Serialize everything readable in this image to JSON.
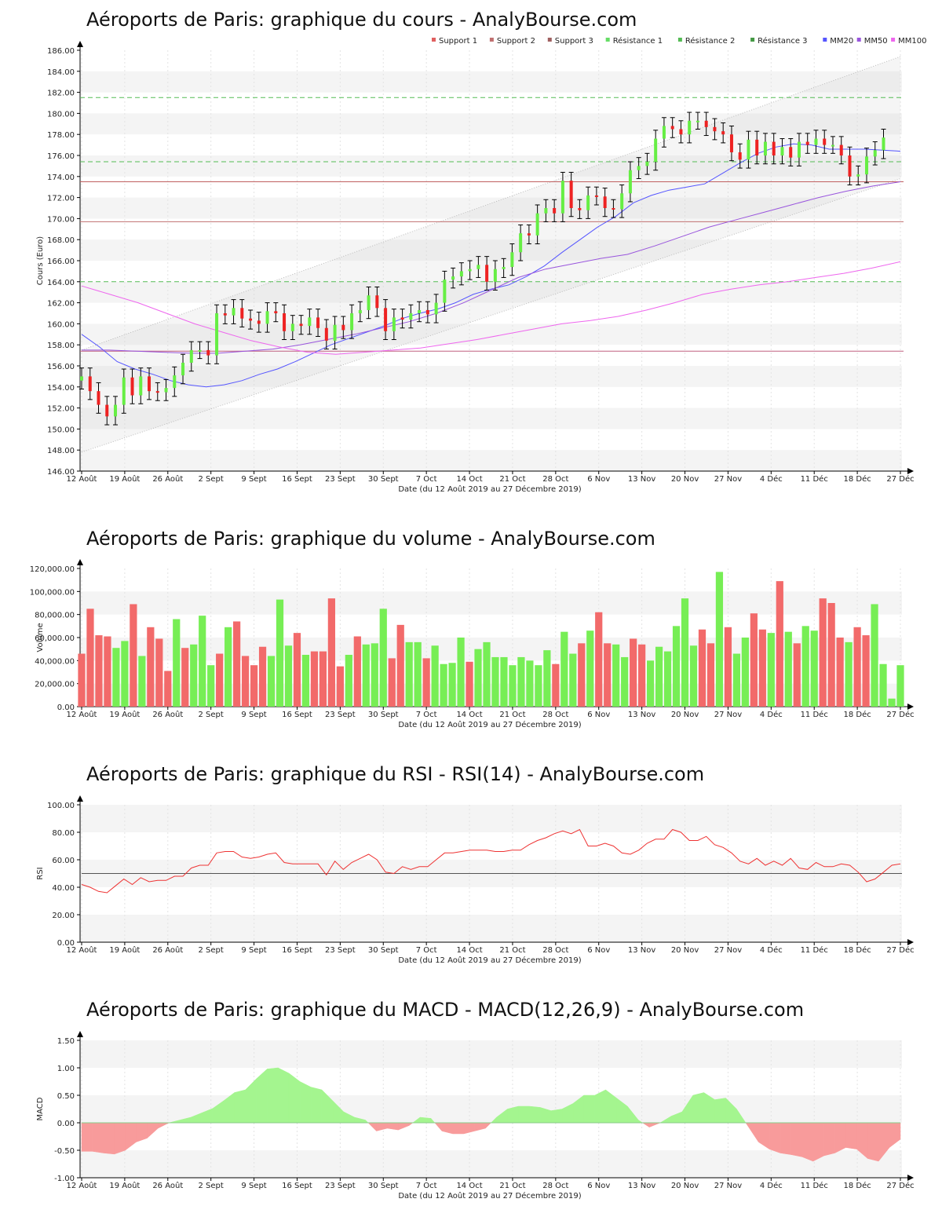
{
  "common": {
    "x_axis_label": "Date (du 12 Août 2019 au 27 Décembre 2019)",
    "x_tick_labels": [
      "12 Août",
      "19 Août",
      "26 Août",
      "2 Sept",
      "9 Sept",
      "16 Sept",
      "23 Sept",
      "30 Sept",
      "7 Oct",
      "14 Oct",
      "21 Oct",
      "28 Oct",
      "6 Nov",
      "13 Nov",
      "20 Nov",
      "27 Nov",
      "4 Déc",
      "11 Déc",
      "18 Déc",
      "27 Déc"
    ],
    "up_color": "#66ee44",
    "down_color": "#ee2222"
  },
  "legend": [
    {
      "label": "Support 1",
      "color": "#e06060"
    },
    {
      "label": "Support 2",
      "color": "#c07070"
    },
    {
      "label": "Support 3",
      "color": "#a06060"
    },
    {
      "label": "Résistance 1",
      "color": "#66dd66"
    },
    {
      "label": "Résistance 2",
      "color": "#55bb55"
    },
    {
      "label": "Résistance 3",
      "color": "#449944"
    },
    {
      "label": "MM20",
      "color": "#5555ff"
    },
    {
      "label": "MM50",
      "color": "#9955dd"
    },
    {
      "label": "MM100",
      "color": "#ee66ee"
    }
  ],
  "chart_data": [
    {
      "type": "candlestick",
      "title": "Aéroports de Paris: graphique du cours - AnalyBourse.com",
      "ylabel": "Cours (Euro)",
      "xlabel": "Date (du 12 Août 2019 au 27 Décembre 2019)",
      "ylim": [
        146,
        186
      ],
      "y_ticks": [
        "146.00",
        "148.00",
        "150.00",
        "152.00",
        "154.00",
        "156.00",
        "158.00",
        "160.00",
        "162.00",
        "164.00",
        "166.00",
        "168.00",
        "170.00",
        "172.00",
        "174.00",
        "176.00",
        "178.00",
        "180.00",
        "182.00",
        "184.00",
        "186.00"
      ],
      "close": [
        155.0,
        153.6,
        152.3,
        151.2,
        152.3,
        154.9,
        153.2,
        155.0,
        153.6,
        153.5,
        153.9,
        155.1,
        156.3,
        157.5,
        157.5,
        157.0,
        161.0,
        160.8,
        161.5,
        160.5,
        160.3,
        160.0,
        161.2,
        161.0,
        159.3,
        160.0,
        159.8,
        160.6,
        159.6,
        158.4,
        159.9,
        159.4,
        161.0,
        161.3,
        162.7,
        161.5,
        159.3,
        160.6,
        160.4,
        161.0,
        161.3,
        160.9,
        162.0,
        164.2,
        164.5,
        165.0,
        165.2,
        165.6,
        164.0,
        165.2,
        165.4,
        166.8,
        168.6,
        168.4,
        170.5,
        171.0,
        170.5,
        173.6,
        171.0,
        170.8,
        172.2,
        172.1,
        171.0,
        170.9,
        172.4,
        174.6,
        175.0,
        175.4,
        177.6,
        178.8,
        178.5,
        178.0,
        179.3,
        179.3,
        178.7,
        178.3,
        178.0,
        176.3,
        175.6,
        177.5,
        176.0,
        177.3,
        176.0,
        176.8,
        175.8,
        177.3,
        177.0,
        177.6,
        177.0,
        177.0,
        176.0,
        174.0,
        174.2,
        175.9,
        176.5,
        177.7
      ],
      "series": [
        {
          "name": "MM20",
          "values": [
            159.0,
            157.8,
            156.4,
            155.7,
            155.2,
            154.6,
            154.2,
            154.0,
            154.2,
            154.6,
            155.2,
            155.7,
            156.4,
            157.2,
            158.0,
            158.6,
            159.2,
            159.8,
            160.5,
            161.0,
            161.4,
            162.0,
            162.8,
            163.3,
            163.7,
            164.5,
            165.5,
            166.8,
            168.0,
            169.2,
            170.2,
            171.5,
            172.2,
            172.7,
            173.0,
            173.3,
            174.3,
            175.3,
            176.2,
            176.8,
            177.1,
            177.0,
            176.6,
            176.6,
            176.6,
            176.5,
            176.4
          ]
        },
        {
          "name": "MM50",
          "values": [
            157.5,
            157.5,
            157.4,
            157.3,
            157.2,
            157.2,
            157.4,
            157.6,
            158.0,
            158.5,
            159.0,
            159.6,
            160.2,
            161.0,
            162.0,
            163.2,
            164.4,
            165.2,
            165.7,
            166.2,
            166.6,
            167.4,
            168.3,
            169.2,
            169.9,
            170.6,
            171.3,
            172.0,
            172.6,
            173.1,
            173.5
          ]
        },
        {
          "name": "MM100",
          "values": [
            163.6,
            162.8,
            162.0,
            161.0,
            160.0,
            159.2,
            158.4,
            157.8,
            157.3,
            157.1,
            157.3,
            157.5,
            157.7,
            158.1,
            158.5,
            159.0,
            159.5,
            160.0,
            160.3,
            160.7,
            161.3,
            162.0,
            162.8,
            163.3,
            163.7,
            164.0,
            164.4,
            164.8,
            165.3,
            165.9
          ]
        }
      ],
      "support_levels": [
        173.5,
        169.7,
        157.4
      ],
      "resistance_levels": [
        181.5,
        175.4,
        164.0
      ],
      "trend_channel": {
        "lower_start": 147.8,
        "lower_end": 173.8,
        "upper_start": 157.5,
        "upper_end": 185.4
      }
    },
    {
      "type": "bar",
      "title": "Aéroports de Paris: graphique du volume - AnalyBourse.com",
      "ylabel": "Volume",
      "xlabel": "Date (du 12 Août 2019 au 27 Décembre 2019)",
      "ylim": [
        0,
        120000
      ],
      "y_ticks": [
        "0.00",
        "20,000.00",
        "40,000.00",
        "60,000.00",
        "80,000.00",
        "100,000.00",
        "120,000.00"
      ],
      "values": [
        46000,
        85000,
        62000,
        61000,
        51000,
        57000,
        89000,
        44000,
        69000,
        59000,
        31000,
        76000,
        51000,
        54000,
        79000,
        36000,
        46000,
        69000,
        74000,
        44000,
        36000,
        52000,
        44000,
        93000,
        53000,
        64000,
        45000,
        48000,
        48000,
        94000,
        35000,
        45000,
        61000,
        54000,
        55000,
        85000,
        42000,
        71000,
        56000,
        56000,
        42000,
        53000,
        37000,
        38000,
        60000,
        39000,
        50000,
        56000,
        43000,
        43000,
        36000,
        43000,
        40000,
        36000,
        49000,
        37000,
        65000,
        46000,
        55000,
        66000,
        82000,
        55000,
        54000,
        43000,
        59000,
        54000,
        40000,
        52000,
        48000,
        70000,
        94000,
        53000,
        67000,
        55000,
        117000,
        69000,
        46000,
        60000,
        81000,
        67000,
        64000,
        109000,
        65000,
        55000,
        70000,
        66000,
        94000,
        90000,
        60000,
        56000,
        69000,
        62000,
        89000,
        37000,
        7000,
        36000
      ],
      "up": [
        false,
        false,
        false,
        false,
        true,
        true,
        false,
        true,
        false,
        false,
        false,
        true,
        false,
        true,
        true,
        true,
        false,
        true,
        false,
        false,
        false,
        false,
        true,
        true,
        true,
        false,
        true,
        false,
        false,
        false,
        false,
        true,
        false,
        true,
        true,
        true,
        false,
        false,
        true,
        true,
        false,
        true,
        true,
        true,
        true,
        false,
        true,
        true,
        true,
        true,
        true,
        true,
        true,
        true,
        true,
        false,
        true,
        true,
        false,
        true,
        false,
        false,
        true,
        true,
        false,
        false,
        true,
        true,
        true,
        true,
        true,
        true,
        false,
        false,
        true,
        false,
        true,
        true,
        false,
        false,
        true,
        false,
        true,
        false,
        true,
        true,
        false,
        false,
        false,
        true,
        false,
        false,
        true,
        true,
        true,
        true
      ]
    },
    {
      "type": "line",
      "title": "Aéroports de Paris: graphique du RSI - RSI(14) - AnalyBourse.com",
      "ylabel": "RSI",
      "xlabel": "Date (du 12 Août 2019 au 27 Décembre 2019)",
      "ylim": [
        0,
        100
      ],
      "y_ticks": [
        "0.00",
        "20.00",
        "40.00",
        "60.00",
        "80.00",
        "100.00"
      ],
      "reference_line": 50,
      "values": [
        42,
        40,
        37,
        36,
        41,
        46,
        42,
        47,
        44,
        45,
        45,
        48,
        48,
        54,
        56,
        56,
        65,
        66,
        66,
        62,
        61,
        62,
        64,
        65,
        58,
        57,
        57,
        57,
        57,
        49,
        59,
        53,
        58,
        61,
        64,
        60,
        51,
        50,
        55,
        53,
        55,
        55,
        60,
        65,
        65,
        66,
        67,
        67,
        67,
        66,
        66,
        67,
        67,
        71,
        74,
        76,
        79,
        81,
        79,
        82,
        70,
        70,
        72,
        70,
        65,
        64,
        67,
        72,
        75,
        75,
        82,
        80,
        74,
        74,
        77,
        71,
        69,
        65,
        59,
        57,
        61,
        56,
        59,
        56,
        61,
        54,
        53,
        58,
        55,
        55,
        57,
        56,
        51,
        44,
        46,
        51,
        56,
        57
      ]
    },
    {
      "type": "area",
      "title": "Aéroports de Paris: graphique du MACD - MACD(12,26,9) - AnalyBourse.com",
      "ylabel": "MACD",
      "xlabel": "Date (du 12 Août 2019 au 27 Décembre 2019)",
      "ylim": [
        -1.0,
        1.5
      ],
      "y_ticks": [
        "-1.00",
        "-0.50",
        "0.00",
        "0.50",
        "1.00",
        "1.50"
      ],
      "values": [
        -0.52,
        -0.52,
        -0.55,
        -0.57,
        -0.5,
        -0.35,
        -0.28,
        -0.1,
        0.0,
        0.05,
        0.1,
        0.18,
        0.26,
        0.4,
        0.55,
        0.6,
        0.8,
        0.98,
        1.0,
        0.9,
        0.75,
        0.65,
        0.6,
        0.4,
        0.2,
        0.1,
        0.05,
        -0.15,
        -0.1,
        -0.13,
        -0.05,
        0.1,
        0.08,
        -0.15,
        -0.2,
        -0.2,
        -0.15,
        -0.1,
        0.1,
        0.25,
        0.3,
        0.3,
        0.28,
        0.22,
        0.25,
        0.35,
        0.5,
        0.5,
        0.6,
        0.45,
        0.3,
        0.05,
        -0.08,
        0.0,
        0.12,
        0.2,
        0.5,
        0.55,
        0.42,
        0.45,
        0.25,
        -0.05,
        -0.35,
        -0.48,
        -0.55,
        -0.58,
        -0.62,
        -0.7,
        -0.6,
        -0.55,
        -0.45,
        -0.48,
        -0.65,
        -0.7,
        -0.45,
        -0.3
      ]
    }
  ]
}
